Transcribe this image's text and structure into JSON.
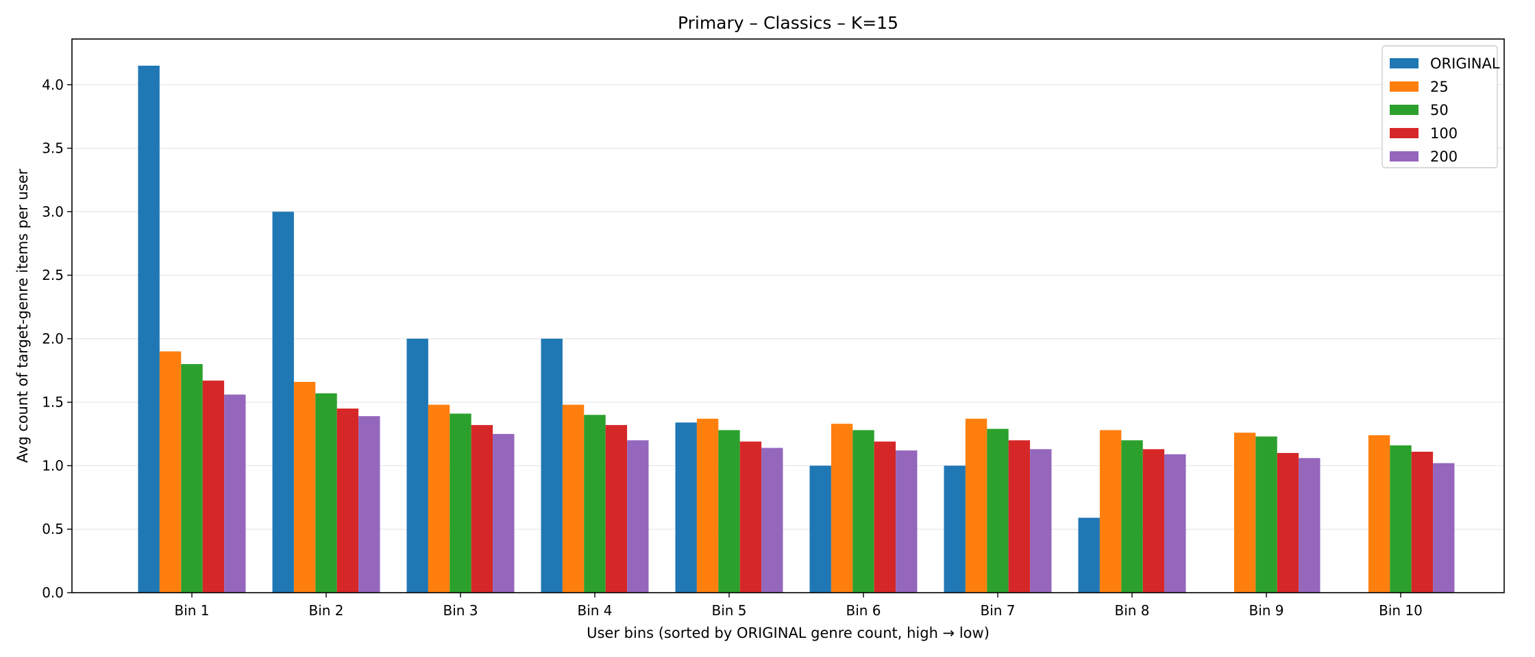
{
  "chart_data": {
    "type": "bar",
    "title": "Primary – Classics – K=15",
    "xlabel": "User bins (sorted by ORIGINAL genre count, high → low)",
    "ylabel": "Avg count of target-genre items per user",
    "ylim": [
      0,
      4.36
    ],
    "yticks": [
      "0.0",
      "0.5",
      "1.0",
      "1.5",
      "2.0",
      "2.5",
      "3.0",
      "3.5",
      "4.0"
    ],
    "grid": "horizontal",
    "legend_position": "top-right",
    "categories": [
      "Bin 1",
      "Bin 2",
      "Bin 3",
      "Bin 4",
      "Bin 5",
      "Bin 6",
      "Bin 7",
      "Bin 8",
      "Bin 9",
      "Bin 10"
    ],
    "series": [
      {
        "name": "ORIGINAL",
        "color": "#1f77b4",
        "values": [
          4.15,
          3.0,
          2.0,
          2.0,
          1.34,
          1.0,
          1.0,
          0.59,
          null,
          null
        ]
      },
      {
        "name": "25",
        "color": "#ff7f0e",
        "values": [
          1.9,
          1.66,
          1.48,
          1.48,
          1.37,
          1.33,
          1.37,
          1.28,
          1.26,
          1.24
        ]
      },
      {
        "name": "50",
        "color": "#2ca02c",
        "values": [
          1.8,
          1.57,
          1.41,
          1.4,
          1.28,
          1.28,
          1.29,
          1.2,
          1.23,
          1.16
        ]
      },
      {
        "name": "100",
        "color": "#d62728",
        "values": [
          1.67,
          1.45,
          1.32,
          1.32,
          1.19,
          1.19,
          1.2,
          1.13,
          1.1,
          1.11
        ]
      },
      {
        "name": "200",
        "color": "#9467bd",
        "values": [
          1.56,
          1.39,
          1.25,
          1.2,
          1.14,
          1.12,
          1.13,
          1.09,
          1.06,
          1.02
        ]
      }
    ]
  }
}
